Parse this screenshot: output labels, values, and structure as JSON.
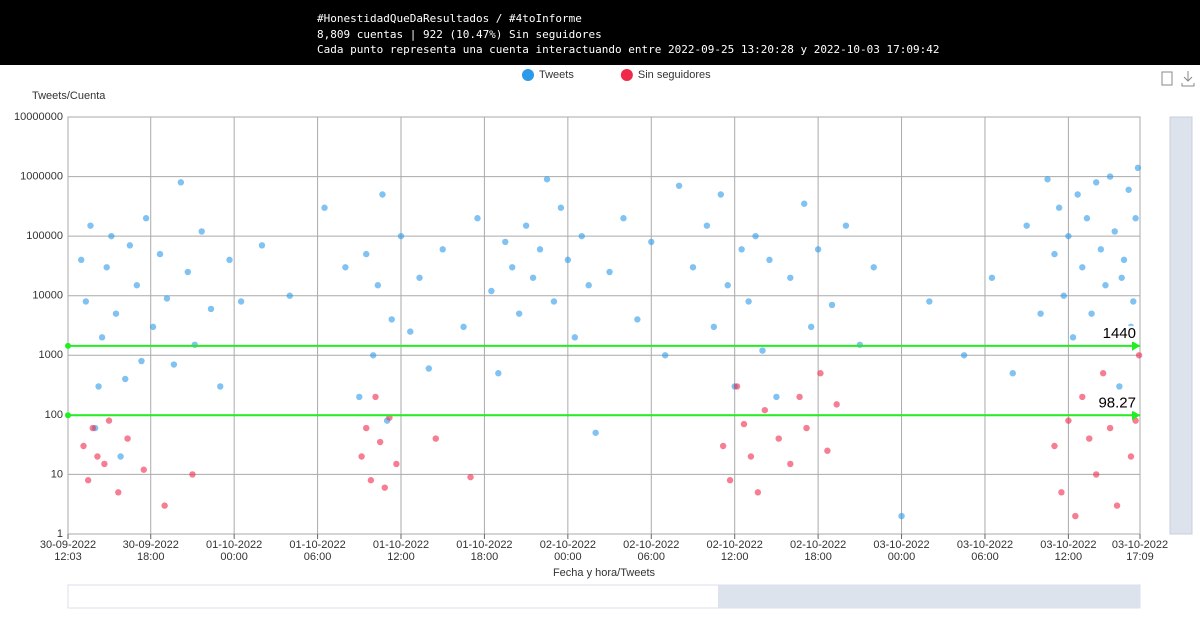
{
  "chart_data": {
    "type": "scatter",
    "title": "#HonestidadQueDaResultados / #4toInforme",
    "subtitle": "8,809 cuentas | 922 (10.47%) Sin seguidores",
    "note": "Cada punto representa una cuenta interactuando entre 2022-09-25 13:20:28 y 2022-10-03 17:09:42",
    "x_label": "Fecha y hora/Tweets",
    "y_label": "Tweets/Cuenta",
    "log_scale": true,
    "grid": true,
    "legend": "top",
    "xlim": [
      "2022-09-30 12:03",
      "2022-10-03 17:09"
    ],
    "xticks": [
      {
        "value": "2022-09-30 12:03",
        "label": "30-09-2022\n12:03"
      },
      {
        "value": "2022-09-30 18:00",
        "label": "30-09-2022\n18:00"
      },
      {
        "value": "2022-10-01 00:00",
        "label": "01-10-2022\n00:00"
      },
      {
        "value": "2022-10-01 06:00",
        "label": "01-10-2022\n06:00"
      },
      {
        "value": "2022-10-01 12:00",
        "label": "01-10-2022\n12:00"
      },
      {
        "value": "2022-10-01 18:00",
        "label": "01-10-2022\n18:00"
      },
      {
        "value": "2022-10-02 00:00",
        "label": "02-10-2022\n00:00"
      },
      {
        "value": "2022-10-02 06:00",
        "label": "02-10-2022\n06:00"
      },
      {
        "value": "2022-10-02 12:00",
        "label": "02-10-2022\n12:00"
      },
      {
        "value": "2022-10-02 18:00",
        "label": "02-10-2022\n18:00"
      },
      {
        "value": "2022-10-03 00:00",
        "label": "03-10-2022\n00:00"
      },
      {
        "value": "2022-10-03 06:00",
        "label": "03-10-2022\n06:00"
      },
      {
        "value": "2022-10-03 12:00",
        "label": "03-10-2022\n12:00"
      },
      {
        "value": "2022-10-03 17:09",
        "label": "03-10-2022\n17:09"
      }
    ],
    "ylim": [
      1,
      10000000
    ],
    "yticks": [
      1,
      10,
      100,
      1000,
      10000,
      100000,
      1000000,
      10000000
    ],
    "reference_lines": {
      "color": "#22ee22",
      "values": [
        1440,
        98.27
      ]
    },
    "series": [
      {
        "name": "Tweets",
        "color": "#2b9ae8",
        "x": [
          "2022-09-30 13:00",
          "2022-09-30 13:20",
          "2022-09-30 13:40",
          "2022-09-30 14:00",
          "2022-09-30 14:15",
          "2022-09-30 14:30",
          "2022-09-30 14:50",
          "2022-09-30 15:10",
          "2022-09-30 15:30",
          "2022-09-30 15:50",
          "2022-09-30 16:10",
          "2022-09-30 16:30",
          "2022-09-30 17:00",
          "2022-09-30 17:20",
          "2022-09-30 17:40",
          "2022-09-30 18:10",
          "2022-09-30 18:40",
          "2022-09-30 19:10",
          "2022-09-30 19:40",
          "2022-09-30 20:10",
          "2022-09-30 20:40",
          "2022-09-30 21:10",
          "2022-09-30 21:40",
          "2022-09-30 22:20",
          "2022-09-30 23:00",
          "2022-09-30 23:40",
          "2022-10-01 00:30",
          "2022-10-01 02:00",
          "2022-10-01 04:00",
          "2022-10-01 06:30",
          "2022-10-01 08:00",
          "2022-10-01 09:00",
          "2022-10-01 09:30",
          "2022-10-01 10:00",
          "2022-10-01 10:20",
          "2022-10-01 10:40",
          "2022-10-01 11:00",
          "2022-10-01 11:20",
          "2022-10-01 12:00",
          "2022-10-01 12:40",
          "2022-10-01 13:20",
          "2022-10-01 14:00",
          "2022-10-01 15:00",
          "2022-10-01 16:30",
          "2022-10-01 17:30",
          "2022-10-01 18:30",
          "2022-10-01 19:00",
          "2022-10-01 19:30",
          "2022-10-01 20:00",
          "2022-10-01 20:30",
          "2022-10-01 21:00",
          "2022-10-01 21:30",
          "2022-10-01 22:00",
          "2022-10-01 22:30",
          "2022-10-01 23:00",
          "2022-10-01 23:30",
          "2022-10-02 00:00",
          "2022-10-02 00:30",
          "2022-10-02 01:00",
          "2022-10-02 01:30",
          "2022-10-02 02:00",
          "2022-10-02 03:00",
          "2022-10-02 04:00",
          "2022-10-02 05:00",
          "2022-10-02 06:00",
          "2022-10-02 07:00",
          "2022-10-02 08:00",
          "2022-10-02 09:00",
          "2022-10-02 10:00",
          "2022-10-02 10:30",
          "2022-10-02 11:00",
          "2022-10-02 11:30",
          "2022-10-02 12:00",
          "2022-10-02 12:30",
          "2022-10-02 13:00",
          "2022-10-02 13:30",
          "2022-10-02 14:00",
          "2022-10-02 14:30",
          "2022-10-02 15:00",
          "2022-10-02 16:00",
          "2022-10-02 17:00",
          "2022-10-02 17:30",
          "2022-10-02 18:00",
          "2022-10-02 19:00",
          "2022-10-02 20:00",
          "2022-10-02 21:00",
          "2022-10-02 22:00",
          "2022-10-03 00:00",
          "2022-10-03 02:00",
          "2022-10-03 04:30",
          "2022-10-03 06:30",
          "2022-10-03 08:00",
          "2022-10-03 09:00",
          "2022-10-03 10:00",
          "2022-10-03 10:30",
          "2022-10-03 11:00",
          "2022-10-03 11:20",
          "2022-10-03 11:40",
          "2022-10-03 12:00",
          "2022-10-03 12:20",
          "2022-10-03 12:40",
          "2022-10-03 13:00",
          "2022-10-03 13:20",
          "2022-10-03 13:40",
          "2022-10-03 14:00",
          "2022-10-03 14:20",
          "2022-10-03 14:40",
          "2022-10-03 15:00",
          "2022-10-03 15:20",
          "2022-10-03 15:40",
          "2022-10-03 15:50",
          "2022-10-03 16:00",
          "2022-10-03 16:20",
          "2022-10-03 16:30",
          "2022-10-03 16:40",
          "2022-10-03 16:50",
          "2022-10-03 17:00"
        ],
        "values": [
          40000,
          8000,
          150000,
          60,
          300,
          2000,
          30000,
          100000,
          5000,
          20,
          400,
          70000,
          15000,
          800,
          200000,
          3000,
          50000,
          9000,
          700,
          800000,
          25000,
          1500,
          120000,
          6000,
          300,
          40000,
          8000,
          70000,
          10000,
          300000,
          30000,
          200,
          50000,
          1000,
          15000,
          500000,
          80,
          4000,
          100000,
          2500,
          20000,
          600,
          60000,
          3000,
          200000,
          12000,
          500,
          80000,
          30000,
          5000,
          150000,
          20000,
          60000,
          900000,
          8000,
          300000,
          40000,
          2000,
          100000,
          15000,
          50,
          25000,
          200000,
          4000,
          80000,
          1000,
          700000,
          30000,
          150000,
          3000,
          500000,
          15000,
          300,
          60000,
          8000,
          100000,
          1200,
          40000,
          200,
          20000,
          350000,
          3000,
          60000,
          7000,
          150000,
          1500,
          30000,
          2,
          8000,
          1000,
          20000,
          500,
          150000,
          5000,
          900000,
          50000,
          300000,
          10000,
          100000,
          2000,
          500000,
          30000,
          200000,
          5000,
          800000,
          60000,
          15000,
          1000000,
          120000,
          300,
          20000,
          40000,
          600000,
          3000,
          8000,
          200000,
          1400000
        ]
      },
      {
        "name": "Sin seguidores",
        "color": "#f0284a",
        "x": [
          "2022-09-30 13:10",
          "2022-09-30 13:30",
          "2022-09-30 13:50",
          "2022-09-30 14:10",
          "2022-09-30 14:40",
          "2022-09-30 15:00",
          "2022-09-30 15:40",
          "2022-09-30 16:20",
          "2022-09-30 17:30",
          "2022-09-30 19:00",
          "2022-09-30 21:00",
          "2022-10-01 09:10",
          "2022-10-01 09:30",
          "2022-10-01 09:50",
          "2022-10-01 10:10",
          "2022-10-01 10:30",
          "2022-10-01 10:50",
          "2022-10-01 11:10",
          "2022-10-01 11:40",
          "2022-10-01 14:30",
          "2022-10-01 17:00",
          "2022-10-02 11:10",
          "2022-10-02 11:40",
          "2022-10-02 12:10",
          "2022-10-02 12:40",
          "2022-10-02 13:10",
          "2022-10-02 13:40",
          "2022-10-02 14:10",
          "2022-10-02 15:10",
          "2022-10-02 16:00",
          "2022-10-02 16:40",
          "2022-10-02 17:10",
          "2022-10-02 18:10",
          "2022-10-02 18:40",
          "2022-10-02 19:20",
          "2022-10-03 11:00",
          "2022-10-03 11:30",
          "2022-10-03 12:00",
          "2022-10-03 12:30",
          "2022-10-03 13:00",
          "2022-10-03 13:30",
          "2022-10-03 14:00",
          "2022-10-03 14:30",
          "2022-10-03 15:00",
          "2022-10-03 15:30",
          "2022-10-03 16:00",
          "2022-10-03 16:30",
          "2022-10-03 16:50",
          "2022-10-03 17:05"
        ],
        "values": [
          30,
          8,
          60,
          20,
          15,
          80,
          5,
          40,
          12,
          3,
          10,
          20,
          60,
          8,
          200,
          35,
          6,
          90,
          15,
          40,
          9,
          30,
          8,
          300,
          70,
          20,
          5,
          120,
          40,
          15,
          200,
          60,
          500,
          25,
          150,
          30,
          5,
          80,
          2,
          200,
          40,
          10,
          500,
          60,
          3,
          150,
          20,
          80,
          1000
        ]
      }
    ]
  }
}
